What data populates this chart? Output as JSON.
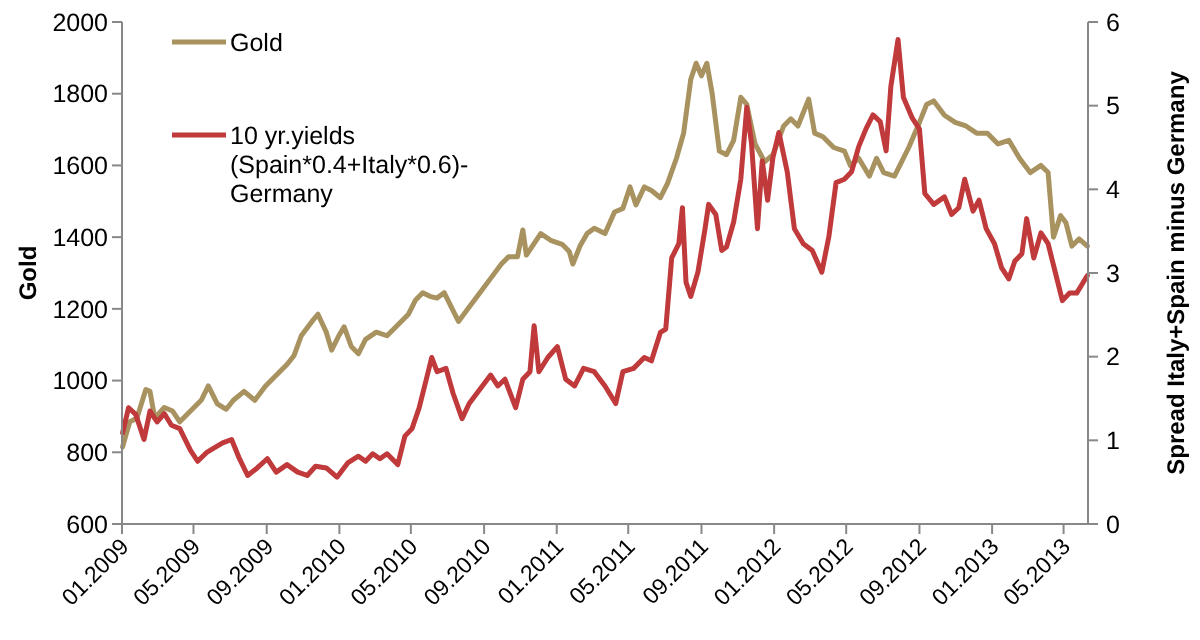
{
  "chart_data": {
    "type": "line",
    "ylabel": "Gold",
    "y2label": "Spread Italy+Spain minus Germany",
    "ylim": [
      600,
      2000
    ],
    "yticks": [
      600,
      800,
      1000,
      1200,
      1400,
      1600,
      1800,
      2000
    ],
    "y2lim": [
      0,
      6
    ],
    "y2ticks": [
      0,
      1,
      2,
      3,
      4,
      5,
      6
    ],
    "xlim": [
      "2009-01-01",
      "2013-06-11"
    ],
    "xticks": [
      {
        "value": "2009-01-01",
        "label": "01.2009"
      },
      {
        "value": "2009-05-01",
        "label": "05.2009"
      },
      {
        "value": "2009-09-01",
        "label": "09.2009"
      },
      {
        "value": "2010-01-01",
        "label": "01.2010"
      },
      {
        "value": "2010-05-01",
        "label": "05.2010"
      },
      {
        "value": "2010-09-01",
        "label": "09.2010"
      },
      {
        "value": "2011-01-01",
        "label": "01.2011"
      },
      {
        "value": "2011-05-01",
        "label": "05.2011"
      },
      {
        "value": "2011-09-01",
        "label": "09.2011"
      },
      {
        "value": "2012-01-01",
        "label": "01.2012"
      },
      {
        "value": "2012-05-01",
        "label": "05.2012"
      },
      {
        "value": "2012-09-01",
        "label": "09.2012"
      },
      {
        "value": "2013-01-01",
        "label": "01.2013"
      },
      {
        "value": "2013-05-01",
        "label": "05.2013"
      }
    ],
    "grid": false,
    "legend": "top left",
    "marker": "none",
    "line_style": "solid",
    "series": [
      {
        "name": "Gold",
        "color": "#a8925f",
        "x": [
          "2009-01-02",
          "2009-01-14",
          "2009-01-26",
          "2009-02-10",
          "2009-02-17",
          "2009-02-25",
          "2009-03-13",
          "2009-03-27",
          "2009-04-08",
          "2009-04-26",
          "2009-05-14",
          "2009-05-26",
          "2009-06-10",
          "2009-06-25",
          "2009-07-07",
          "2009-07-25",
          "2009-08-12",
          "2009-08-30",
          "2009-09-17",
          "2009-10-05",
          "2009-10-17",
          "2009-10-29",
          "2009-11-16",
          "2009-11-26",
          "2009-12-10",
          "2009-12-19",
          "2009-12-31",
          "2010-01-09",
          "2010-01-21",
          "2010-02-02",
          "2010-02-14",
          "2010-03-04",
          "2010-03-22",
          "2010-04-09",
          "2010-04-27",
          "2010-05-09",
          "2010-05-21",
          "2010-06-02",
          "2010-06-14",
          "2010-06-26",
          "2010-07-08",
          "2010-07-20",
          "2010-08-07",
          "2010-08-25",
          "2010-09-12",
          "2010-09-30",
          "2010-10-12",
          "2010-10-27",
          "2010-11-05",
          "2010-11-11",
          "2010-11-23",
          "2010-12-05",
          "2010-12-23",
          "2011-01-10",
          "2011-01-22",
          "2011-01-28",
          "2011-02-09",
          "2011-02-21",
          "2011-03-05",
          "2011-03-23",
          "2011-04-08",
          "2011-04-22",
          "2011-05-04",
          "2011-05-14",
          "2011-05-28",
          "2011-06-09",
          "2011-06-24",
          "2011-07-06",
          "2011-07-21",
          "2011-08-02",
          "2011-08-14",
          "2011-08-23",
          "2011-09-01",
          "2011-09-10",
          "2011-09-19",
          "2011-10-01",
          "2011-10-13",
          "2011-10-25",
          "2011-11-06",
          "2011-11-16",
          "2011-11-30",
          "2011-12-16",
          "2011-12-30",
          "2012-01-17",
          "2012-01-29",
          "2012-02-10",
          "2012-02-28",
          "2012-03-09",
          "2012-03-23",
          "2012-04-10",
          "2012-04-28",
          "2012-05-08",
          "2012-05-22",
          "2012-06-09",
          "2012-06-21",
          "2012-07-03",
          "2012-07-21",
          "2012-08-02",
          "2012-08-14",
          "2012-09-01",
          "2012-09-13",
          "2012-09-25",
          "2012-10-13",
          "2012-10-31",
          "2012-11-18",
          "2012-12-06",
          "2012-12-24",
          "2013-01-11",
          "2013-01-29",
          "2013-02-16",
          "2013-03-06",
          "2013-03-24",
          "2013-04-05",
          "2013-04-14",
          "2013-04-26",
          "2013-05-05",
          "2013-05-15",
          "2013-05-27",
          "2013-06-10"
        ],
        "values": [
          815,
          885,
          895,
          975,
          970,
          895,
          925,
          915,
          885,
          915,
          945,
          985,
          935,
          920,
          945,
          970,
          945,
          985,
          1015,
          1045,
          1070,
          1125,
          1165,
          1185,
          1135,
          1085,
          1125,
          1150,
          1095,
          1075,
          1115,
          1135,
          1125,
          1155,
          1185,
          1225,
          1245,
          1235,
          1230,
          1245,
          1205,
          1165,
          1205,
          1245,
          1285,
          1325,
          1345,
          1345,
          1420,
          1350,
          1380,
          1410,
          1390,
          1380,
          1360,
          1325,
          1375,
          1410,
          1425,
          1410,
          1470,
          1480,
          1540,
          1490,
          1540,
          1530,
          1510,
          1550,
          1620,
          1690,
          1840,
          1885,
          1850,
          1885,
          1800,
          1640,
          1630,
          1670,
          1790,
          1770,
          1660,
          1610,
          1630,
          1710,
          1730,
          1710,
          1785,
          1690,
          1680,
          1650,
          1640,
          1600,
          1620,
          1570,
          1620,
          1580,
          1570,
          1610,
          1650,
          1720,
          1770,
          1780,
          1740,
          1720,
          1710,
          1690,
          1690,
          1660,
          1670,
          1620,
          1580,
          1600,
          1580,
          1400,
          1460,
          1440,
          1375,
          1395,
          1375
        ]
      },
      {
        "name": "10 yr.yields (Spain*0.4+Italy*0.6)-Germany",
        "color": "#c0393b",
        "axis": "y2",
        "x": [
          "2009-01-02",
          "2009-01-12",
          "2009-01-24",
          "2009-02-07",
          "2009-02-17",
          "2009-03-01",
          "2009-03-13",
          "2009-03-25",
          "2009-04-08",
          "2009-04-26",
          "2009-05-08",
          "2009-05-24",
          "2009-06-07",
          "2009-06-19",
          "2009-07-04",
          "2009-07-16",
          "2009-07-31",
          "2009-08-16",
          "2009-09-02",
          "2009-09-17",
          "2009-10-05",
          "2009-10-23",
          "2009-11-08",
          "2009-11-22",
          "2009-12-10",
          "2009-12-28",
          "2010-01-15",
          "2010-02-02",
          "2010-02-14",
          "2010-02-26",
          "2010-03-10",
          "2010-03-22",
          "2010-04-09",
          "2010-04-21",
          "2010-05-03",
          "2010-05-15",
          "2010-05-27",
          "2010-06-05",
          "2010-06-14",
          "2010-06-29",
          "2010-07-11",
          "2010-07-26",
          "2010-08-07",
          "2010-08-25",
          "2010-09-12",
          "2010-09-24",
          "2010-10-06",
          "2010-10-24",
          "2010-11-05",
          "2010-11-17",
          "2010-11-24",
          "2010-12-02",
          "2010-12-17",
          "2011-01-02",
          "2011-01-16",
          "2011-01-31",
          "2011-02-15",
          "2011-03-05",
          "2011-03-23",
          "2011-04-10",
          "2011-04-22",
          "2011-05-10",
          "2011-05-28",
          "2011-06-09",
          "2011-06-24",
          "2011-07-03",
          "2011-07-13",
          "2011-07-25",
          "2011-07-31",
          "2011-08-06",
          "2011-08-14",
          "2011-08-26",
          "2011-09-07",
          "2011-09-13",
          "2011-09-25",
          "2011-10-05",
          "2011-10-13",
          "2011-10-25",
          "2011-11-06",
          "2011-11-16",
          "2011-11-24",
          "2011-12-04",
          "2011-12-12",
          "2011-12-21",
          "2011-12-30",
          "2012-01-09",
          "2012-01-23",
          "2012-02-04",
          "2012-02-19",
          "2012-03-05",
          "2012-03-21",
          "2012-04-02",
          "2012-04-14",
          "2012-04-28",
          "2012-05-10",
          "2012-05-22",
          "2012-06-03",
          "2012-06-15",
          "2012-06-27",
          "2012-07-07",
          "2012-07-15",
          "2012-07-27",
          "2012-08-05",
          "2012-08-20",
          "2012-09-01",
          "2012-09-10",
          "2012-09-25",
          "2012-10-13",
          "2012-10-25",
          "2012-11-06",
          "2012-11-16",
          "2012-11-30",
          "2012-12-10",
          "2012-12-22",
          "2013-01-05",
          "2013-01-17",
          "2013-01-29",
          "2013-02-08",
          "2013-02-20",
          "2013-02-28",
          "2013-03-12",
          "2013-03-24",
          "2013-04-05",
          "2013-04-17",
          "2013-04-29",
          "2013-05-11",
          "2013-05-23",
          "2013-06-10"
        ],
        "values": [
          1.09,
          1.39,
          1.31,
          1.01,
          1.35,
          1.22,
          1.32,
          1.18,
          1.14,
          0.88,
          0.75,
          0.86,
          0.92,
          0.97,
          1.01,
          0.8,
          0.58,
          0.67,
          0.78,
          0.62,
          0.71,
          0.62,
          0.58,
          0.69,
          0.67,
          0.56,
          0.73,
          0.81,
          0.75,
          0.84,
          0.78,
          0.84,
          0.71,
          1.05,
          1.14,
          1.39,
          1.73,
          1.99,
          1.82,
          1.86,
          1.56,
          1.26,
          1.44,
          1.61,
          1.78,
          1.65,
          1.73,
          1.39,
          1.73,
          1.82,
          2.37,
          1.82,
          1.99,
          2.12,
          1.73,
          1.65,
          1.86,
          1.82,
          1.65,
          1.44,
          1.82,
          1.86,
          1.99,
          1.95,
          2.29,
          2.33,
          3.18,
          3.35,
          3.78,
          2.89,
          2.72,
          3.01,
          3.53,
          3.82,
          3.7,
          3.27,
          3.31,
          3.61,
          4.12,
          4.98,
          4.55,
          3.53,
          4.34,
          3.87,
          4.38,
          4.68,
          4.21,
          3.53,
          3.35,
          3.27,
          3.01,
          3.44,
          4.08,
          4.12,
          4.21,
          4.51,
          4.72,
          4.89,
          4.81,
          4.46,
          5.23,
          5.79,
          5.1,
          4.85,
          4.72,
          3.95,
          3.82,
          3.91,
          3.7,
          3.78,
          4.12,
          3.74,
          3.87,
          3.53,
          3.35,
          3.06,
          2.93,
          3.14,
          3.23,
          3.65,
          3.18,
          3.48,
          3.35,
          3.01,
          2.67,
          2.76,
          2.76,
          2.97
        ]
      }
    ]
  }
}
